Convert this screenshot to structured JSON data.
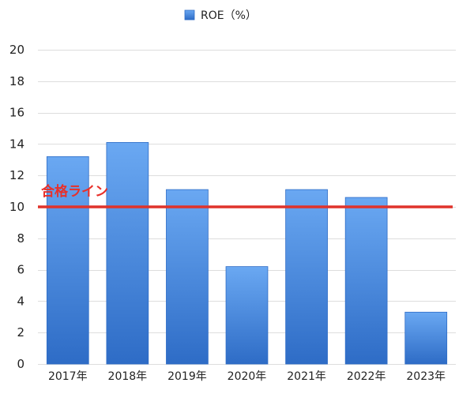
{
  "chart_data": {
    "type": "bar",
    "categories": [
      "2017年",
      "2018年",
      "2019年",
      "2020年",
      "2021年",
      "2022年",
      "2023年"
    ],
    "series": [
      {
        "name": "ROE（%）",
        "values": [
          13.2,
          14.1,
          11.1,
          6.2,
          11.1,
          10.6,
          3.3
        ]
      }
    ],
    "ylim": [
      0,
      20
    ],
    "yticks": [
      0,
      2,
      4,
      6,
      8,
      10,
      12,
      14,
      16,
      18,
      20
    ],
    "grid": true,
    "legend_position": "top-center",
    "reference_line": {
      "value": 10,
      "label": "合格ライン",
      "color": "#e0332b"
    },
    "colors": {
      "bar_top": "#6aa8f2",
      "bar_bottom": "#2e6cc6",
      "grid": "#dddddd"
    }
  }
}
